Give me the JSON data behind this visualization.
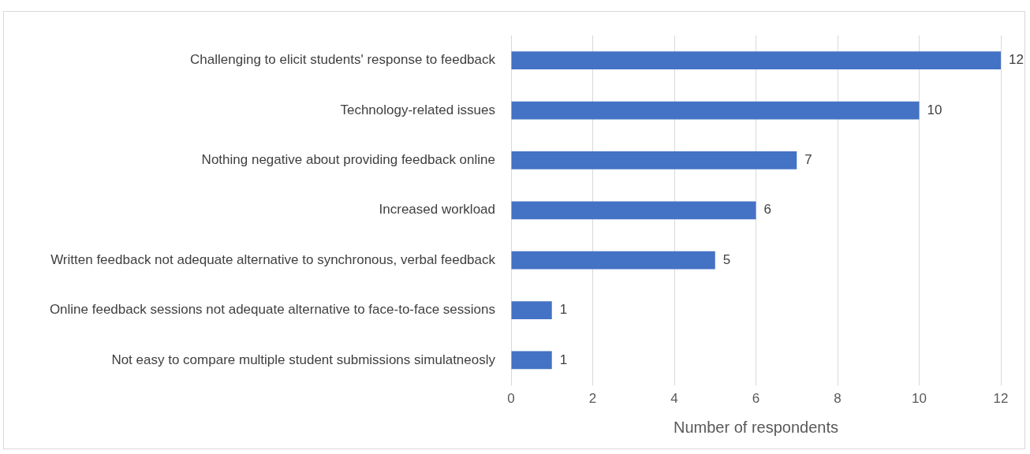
{
  "chart_data": {
    "type": "bar",
    "orientation": "horizontal",
    "xlabel": "Number of respondents",
    "categories": [
      "Challenging to elicit students' response to feedback",
      "Technology-related issues",
      "Nothing negative about providing feedback online",
      "Increased workload",
      "Written feedback not adequate alternative to synchronous, verbal feedback",
      "Online feedback sessions not adequate alternative to face-to-face sessions",
      "Not easy to compare multiple student submissions simulatneosly"
    ],
    "values": [
      12,
      10,
      7,
      6,
      5,
      1,
      1
    ],
    "color": "#4472c4",
    "xlim": [
      0,
      12
    ],
    "xticks": [
      0,
      2,
      4,
      6,
      8,
      10,
      12
    ],
    "grid": "x",
    "data_labels": true,
    "legend": false
  }
}
